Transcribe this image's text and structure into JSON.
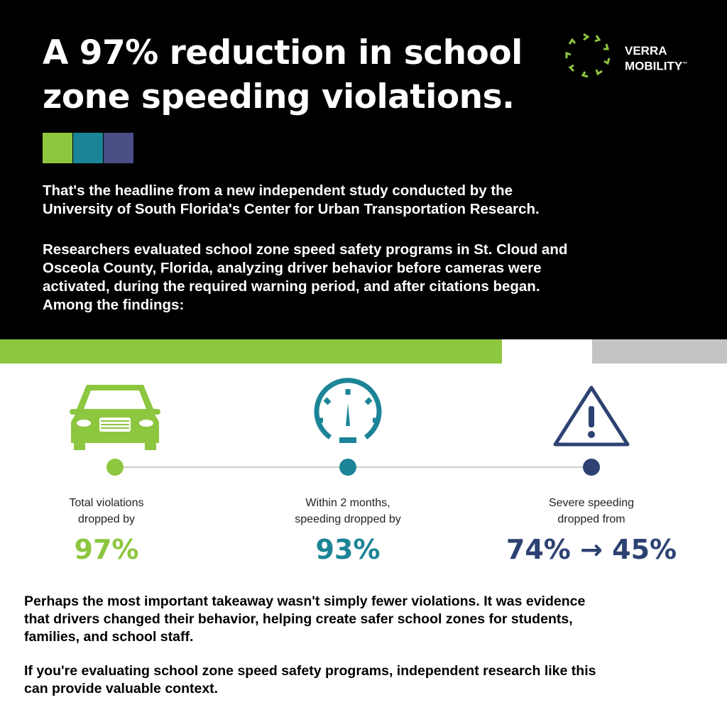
{
  "header": {
    "title_lines": [
      "A 97% reduction in school",
      "zone speeding violations."
    ],
    "logo": [
      "VERRA",
      "MOBILITY",
      "™"
    ]
  },
  "intro": [
    [
      "That's the headline from a new independent study conducted by the",
      "University of South Florida's Center for Urban Transportation Research."
    ],
    [
      "Researchers evaluated school zone speed safety programs in St. Cloud and",
      "Osceola County, Florida, analyzing driver behavior before cameras were",
      "activated, during the required warning period, and after citations began.",
      "Among the findings:"
    ]
  ],
  "stats": [
    {
      "caption": [
        "Total violations",
        "dropped by"
      ],
      "value": "97%"
    },
    {
      "caption": [
        "Within 2 months,",
        "speeding dropped by"
      ],
      "value": "93%"
    },
    {
      "caption": [
        "Severe speeding",
        "dropped from"
      ],
      "value": "74% → 45%"
    }
  ],
  "closing": [
    [
      "Perhaps the most important takeaway wasn't simply fewer violations. It was evidence",
      "that drivers changed their behavior, helping create safer school zones for students,",
      "families, and school staff."
    ],
    [
      "If you're evaluating school zone speed safety programs, independent research like this",
      "can provide valuable context."
    ]
  ]
}
